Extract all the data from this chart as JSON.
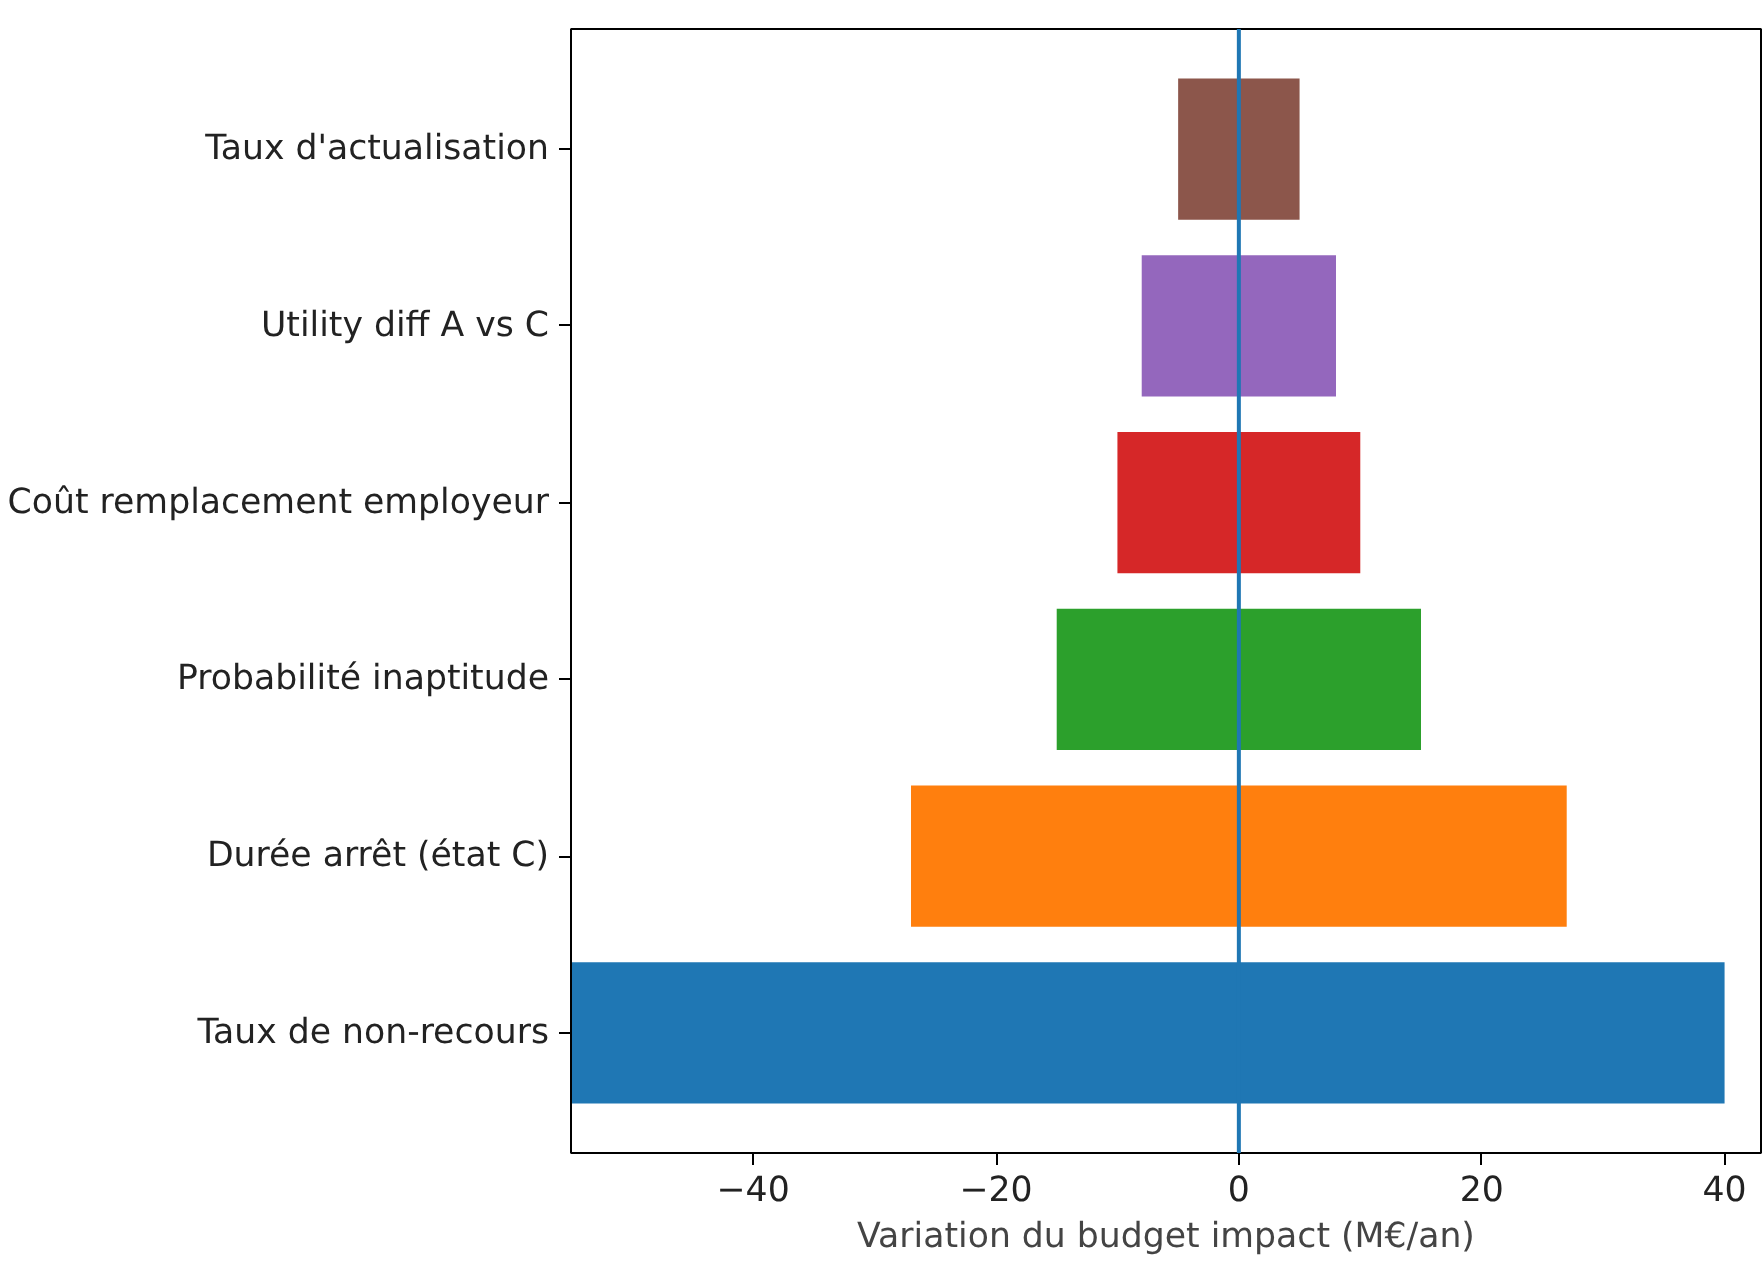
{
  "chart_data": {
    "type": "bar",
    "orientation": "horizontal",
    "xlabel": "Variation du budget impact (M€/an)",
    "categories": [
      "Taux d'actualisation",
      "Utility diff A vs C",
      "Coût remplacement employeur",
      "Probabilité inaptitude",
      "Durée arrêt (état C)",
      "Taux de non-recours"
    ],
    "values": [
      10,
      16,
      20,
      30,
      54,
      95
    ],
    "base": [
      -5,
      -8,
      -10,
      -15,
      -27,
      -55
    ],
    "colors": [
      "#8c564b",
      "#9467bd",
      "#d62728",
      "#2ca02c",
      "#ff7f0e",
      "#1f77b4"
    ],
    "xlim": [
      -55,
      43
    ],
    "xticks": [
      {
        "value": -40,
        "label": "−40"
      },
      {
        "value": -20,
        "label": "−20"
      },
      0,
      20,
      40
    ],
    "ref_lines": [
      {
        "axis": "x",
        "value": 0,
        "label": null,
        "color": "#1f77b4"
      }
    ],
    "grid": false
  }
}
